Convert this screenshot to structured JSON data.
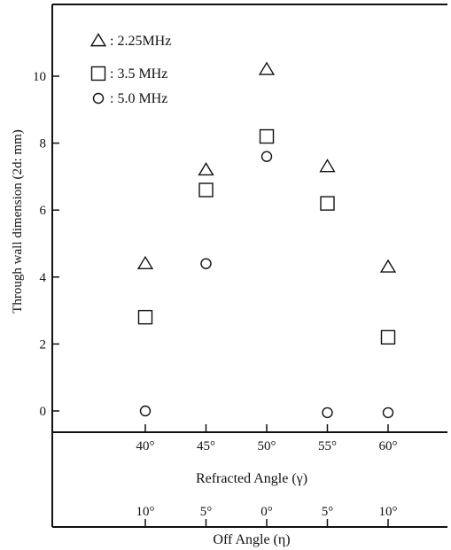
{
  "chart_data": {
    "type": "scatter",
    "ylabel": "Through wall dimension (2d: mm)",
    "ylim": [
      -0.6,
      12
    ],
    "yticks": [
      0,
      2,
      4,
      6,
      8,
      10
    ],
    "categories": [
      "40°",
      "45°",
      "50°",
      "55°",
      "60°"
    ],
    "xlabel": "Refracted Angle (γ)",
    "secondary_categories": [
      "10°",
      "5°",
      "0°",
      "5°",
      "10°"
    ],
    "secondary_xlabel": "Off Angle (η)",
    "series": [
      {
        "name": "2.25MHz",
        "marker": "triangle",
        "values": [
          4.4,
          7.2,
          10.2,
          7.3,
          4.3
        ]
      },
      {
        "name": "3.5 MHz",
        "marker": "square",
        "values": [
          2.8,
          6.6,
          8.2,
          6.2,
          2.2
        ]
      },
      {
        "name": "5.0 MHz",
        "marker": "circle",
        "values": [
          0.0,
          4.4,
          7.6,
          -0.05,
          -0.05
        ]
      }
    ],
    "legend_prefix": ":",
    "legend_position": "top-left",
    "grid": false,
    "color": "#111111"
  }
}
